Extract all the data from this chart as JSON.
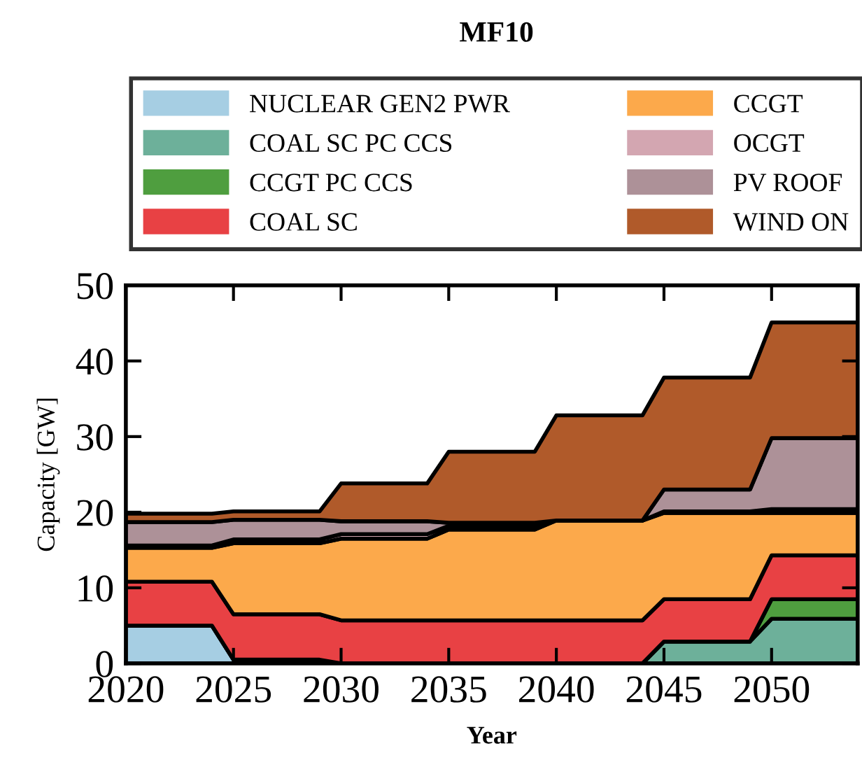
{
  "chart_data": {
    "type": "area",
    "stacked": true,
    "title": "MF10",
    "xlabel": "Year",
    "ylabel": "Capacity [GW]",
    "x": [
      2020,
      2024,
      2025,
      2029,
      2030,
      2034,
      2035,
      2039,
      2040,
      2044,
      2045,
      2049,
      2050,
      2054
    ],
    "series": [
      {
        "name": "NUCLEAR GEN2 PWR",
        "color": "#a6cee3",
        "values": [
          5,
          5,
          0.5,
          0.5,
          0,
          0,
          0,
          0,
          0,
          0,
          0,
          0,
          0,
          0
        ]
      },
      {
        "name": "COAL SC PC CCS",
        "color": "#6db09a",
        "values": [
          0,
          0,
          0,
          0,
          0,
          0,
          0,
          0,
          0,
          0,
          2.9,
          2.9,
          5.9,
          5.9
        ]
      },
      {
        "name": "CCGT PC CCS",
        "color": "#4f9e3f",
        "values": [
          0,
          0,
          0,
          0,
          0,
          0,
          0,
          0,
          0,
          0,
          0,
          0,
          2.6,
          2.6
        ]
      },
      {
        "name": "COAL SC",
        "color": "#e84144",
        "values": [
          5.8,
          5.8,
          6.0,
          6.0,
          5.7,
          5.7,
          5.7,
          5.7,
          5.7,
          5.7,
          5.6,
          5.6,
          5.8,
          5.8
        ]
      },
      {
        "name": "CCGT",
        "color": "#fca94b",
        "values": [
          4.5,
          4.5,
          9.4,
          9.4,
          10.8,
          10.8,
          12.0,
          12.0,
          13.2,
          13.2,
          11.4,
          11.4,
          5.6,
          5.6
        ]
      },
      {
        "name": "OCGT",
        "color": "#d3a6b1",
        "values": [
          0.3,
          0.3,
          0.5,
          0.5,
          0.6,
          0.6,
          0.5,
          0.5,
          0,
          0,
          0.2,
          0.2,
          0.5,
          0.5
        ]
      },
      {
        "name": "PV ROOF",
        "color": "#ad9198",
        "values": [
          3.1,
          3.1,
          2.6,
          2.6,
          1.7,
          1.7,
          0.4,
          0.4,
          0,
          0,
          2.9,
          2.9,
          9.4,
          9.4
        ]
      },
      {
        "name": "WIND ON",
        "color": "#b05a2a",
        "values": [
          1.1,
          1.1,
          1.1,
          1.1,
          5.0,
          5.0,
          9.4,
          9.4,
          13.9,
          13.9,
          14.8,
          14.8,
          15.3,
          15.3
        ]
      }
    ],
    "xlim": [
      2020,
      2054
    ],
    "xticks": [
      2020,
      2025,
      2030,
      2035,
      2040,
      2045,
      2050
    ],
    "ylim": [
      0,
      50
    ],
    "yticks": [
      0,
      10,
      20,
      30,
      40,
      50
    ],
    "grid": false,
    "legend": "top"
  }
}
